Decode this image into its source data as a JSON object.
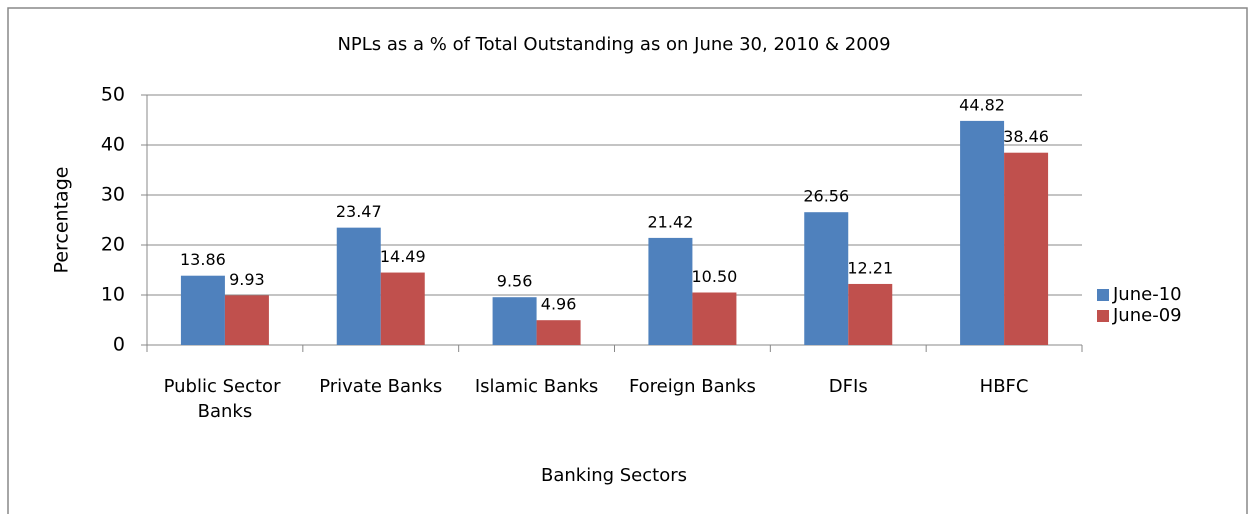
{
  "chart_data": {
    "type": "bar",
    "title": "NPLs as a % of Total Outstanding as on June 30, 2010 & 2009",
    "xlabel": "Banking Sectors",
    "ylabel": "Percentage",
    "categories": [
      "Public Sector Banks",
      "Private Banks",
      "Islamic Banks",
      "Foreign Banks",
      "DFIs",
      "HBFC"
    ],
    "series": [
      {
        "name": "June-10",
        "color": "#4f81bd",
        "values": [
          13.86,
          23.47,
          9.56,
          21.42,
          26.56,
          44.82
        ],
        "value_labels": [
          "13.86",
          "23.47",
          "9.56",
          "21.42",
          "26.56",
          "44.82"
        ]
      },
      {
        "name": "June-09",
        "color": "#c0504d",
        "values": [
          9.93,
          14.49,
          4.96,
          10.5,
          12.21,
          38.46
        ],
        "value_labels": [
          "9.93",
          "14.49",
          "4.96",
          "10.50",
          "12.21",
          "38.46"
        ]
      }
    ],
    "ylim": [
      0,
      50
    ],
    "yticks": [
      0,
      10,
      20,
      30,
      40,
      50
    ],
    "grid": true,
    "legend": "right"
  }
}
